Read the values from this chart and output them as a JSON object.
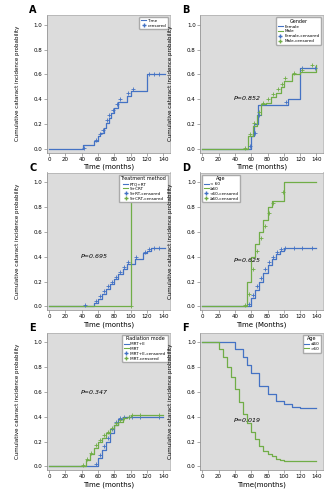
{
  "bg_color": "#dcdcdc",
  "blue_color": "#4472c4",
  "green_color": "#70ad47",
  "ylabel": "Cumulative cataract incidence probability",
  "xlabel_months": "Time (months)",
  "xlabel_Months": "Time (Months)",
  "xlabel_F": "Time(months)",
  "xticks": [
    0,
    20,
    40,
    60,
    80,
    100,
    120,
    140
  ],
  "yticks": [
    0.0,
    0.2,
    0.4,
    0.6,
    0.8,
    1.0
  ],
  "ylim": [
    -0.03,
    1.08
  ],
  "xlim": [
    -3,
    148
  ],
  "A_times": [
    0,
    40,
    42,
    55,
    60,
    63,
    67,
    70,
    73,
    76,
    80,
    85,
    95,
    100,
    120,
    125,
    130,
    142
  ],
  "A_vals": [
    0.0,
    0.0,
    0.03,
    0.06,
    0.1,
    0.13,
    0.17,
    0.21,
    0.25,
    0.29,
    0.33,
    0.38,
    0.43,
    0.47,
    0.6,
    0.6,
    0.6,
    0.6
  ],
  "A_censored_times": [
    43,
    58,
    62,
    66,
    71,
    74,
    78,
    83,
    87,
    97,
    103,
    122,
    128,
    135
  ],
  "A_censored_vals": [
    0.01,
    0.07,
    0.12,
    0.15,
    0.23,
    0.27,
    0.31,
    0.36,
    0.4,
    0.45,
    0.48,
    0.6,
    0.6,
    0.6
  ],
  "B_female_times": [
    0,
    55,
    60,
    63,
    68,
    100,
    105,
    120,
    140
  ],
  "B_female_vals": [
    0.0,
    0.0,
    0.1,
    0.2,
    0.35,
    0.35,
    0.4,
    0.65,
    0.65
  ],
  "B_male_times": [
    0,
    50,
    56,
    62,
    67,
    72,
    78,
    84,
    90,
    96,
    100,
    110,
    120,
    140
  ],
  "B_male_vals": [
    0.0,
    0.0,
    0.1,
    0.18,
    0.27,
    0.36,
    0.37,
    0.42,
    0.45,
    0.5,
    0.55,
    0.6,
    0.62,
    0.68
  ],
  "B_fcen_times": [
    58,
    65,
    70,
    103,
    122,
    138
  ],
  "B_fcen_vals": [
    0.02,
    0.13,
    0.27,
    0.38,
    0.65,
    0.65
  ],
  "B_mcen_times": [
    52,
    59,
    64,
    69,
    74,
    80,
    87,
    93,
    98,
    102,
    112,
    122,
    135
  ],
  "B_mcen_vals": [
    0.01,
    0.12,
    0.21,
    0.3,
    0.37,
    0.4,
    0.44,
    0.48,
    0.52,
    0.57,
    0.61,
    0.64,
    0.68
  ],
  "B_pval": "P=0.852",
  "C_ptqrt_times": [
    0,
    42,
    55,
    60,
    65,
    70,
    75,
    80,
    85,
    90,
    95,
    105,
    115,
    120,
    125,
    130,
    142
  ],
  "C_ptqrt_vals": [
    0.0,
    0.0,
    0.03,
    0.06,
    0.1,
    0.14,
    0.18,
    0.22,
    0.26,
    0.3,
    0.34,
    0.38,
    0.43,
    0.45,
    0.47,
    0.47,
    0.47
  ],
  "C_scrt_times": [
    0,
    98,
    100,
    140
  ],
  "C_scrt_vals": [
    0.0,
    0.0,
    1.0,
    1.0
  ],
  "C_ptqcen_times": [
    44,
    57,
    62,
    67,
    72,
    77,
    82,
    87,
    92,
    97,
    107,
    117,
    122,
    128,
    135
  ],
  "C_ptqcen_vals": [
    0.01,
    0.04,
    0.08,
    0.12,
    0.16,
    0.2,
    0.24,
    0.28,
    0.32,
    0.36,
    0.4,
    0.44,
    0.46,
    0.47,
    0.47
  ],
  "C_scrtcen_times": [
    100
  ],
  "C_scrtcen_vals": [
    0.0
  ],
  "C_pval": "P=0.695",
  "D_lt60_times": [
    0,
    55,
    60,
    65,
    70,
    75,
    80,
    85,
    90,
    95,
    100,
    110,
    120,
    140
  ],
  "D_lt60_vals": [
    0.0,
    0.0,
    0.07,
    0.13,
    0.2,
    0.27,
    0.33,
    0.38,
    0.42,
    0.45,
    0.47,
    0.47,
    0.47,
    0.47
  ],
  "D_ge60_times": [
    0,
    50,
    55,
    60,
    65,
    70,
    75,
    80,
    85,
    98,
    100,
    140
  ],
  "D_ge60_vals": [
    0.0,
    0.0,
    0.2,
    0.4,
    0.5,
    0.6,
    0.7,
    0.8,
    0.85,
    0.85,
    1.0,
    1.0
  ],
  "D_lt60cen_times": [
    57,
    62,
    67,
    72,
    77,
    82,
    87,
    92,
    97,
    102,
    112,
    122,
    135
  ],
  "D_lt60cen_vals": [
    0.02,
    0.09,
    0.16,
    0.23,
    0.3,
    0.36,
    0.4,
    0.44,
    0.46,
    0.47,
    0.47,
    0.47,
    0.47
  ],
  "D_ge60cen_times": [
    52,
    57,
    62,
    67,
    72,
    77,
    82,
    87,
    99
  ],
  "D_ge60cen_vals": [
    0.01,
    0.1,
    0.3,
    0.45,
    0.55,
    0.65,
    0.75,
    0.83,
    0.92
  ],
  "D_pval": "P=0.625",
  "E_imrte_times": [
    0,
    55,
    60,
    65,
    70,
    75,
    80,
    85,
    90,
    96,
    100,
    110,
    140
  ],
  "E_imrte_vals": [
    0.0,
    0.0,
    0.07,
    0.13,
    0.2,
    0.27,
    0.33,
    0.38,
    0.4,
    0.4,
    0.4,
    0.4,
    0.4
  ],
  "E_imrt_times": [
    0,
    40,
    45,
    50,
    55,
    60,
    65,
    70,
    75,
    80,
    85,
    90,
    96,
    100,
    110,
    140
  ],
  "E_imrt_vals": [
    0.0,
    0.0,
    0.05,
    0.1,
    0.15,
    0.2,
    0.23,
    0.27,
    0.3,
    0.33,
    0.36,
    0.39,
    0.4,
    0.41,
    0.41,
    0.41
  ],
  "E_imrtecen_times": [
    57,
    62,
    67,
    72,
    77,
    82,
    87,
    92,
    98,
    102,
    112,
    135
  ],
  "E_imrtecen_vals": [
    0.02,
    0.09,
    0.16,
    0.23,
    0.3,
    0.36,
    0.39,
    0.4,
    0.4,
    0.4,
    0.4,
    0.4
  ],
  "E_imrtcen_times": [
    42,
    47,
    52,
    57,
    62,
    67,
    72,
    77,
    82,
    87,
    92,
    98,
    102,
    112,
    135
  ],
  "E_imrtcen_vals": [
    0.01,
    0.06,
    0.11,
    0.17,
    0.21,
    0.25,
    0.28,
    0.31,
    0.35,
    0.37,
    0.39,
    0.4,
    0.41,
    0.41,
    0.41
  ],
  "E_pval": "P=0.347",
  "F_le60_times": [
    0,
    30,
    40,
    50,
    55,
    60,
    70,
    80,
    90,
    100,
    110,
    120,
    130,
    140
  ],
  "F_le60_vals": [
    1.0,
    1.0,
    0.95,
    0.88,
    0.82,
    0.75,
    0.65,
    0.58,
    0.53,
    0.5,
    0.48,
    0.47,
    0.47,
    0.47
  ],
  "F_gt60_times": [
    0,
    20,
    25,
    30,
    35,
    40,
    45,
    50,
    55,
    60,
    65,
    70,
    75,
    80,
    85,
    90,
    95,
    100,
    140
  ],
  "F_gt60_vals": [
    1.0,
    0.95,
    0.88,
    0.8,
    0.72,
    0.62,
    0.52,
    0.42,
    0.35,
    0.28,
    0.22,
    0.16,
    0.12,
    0.1,
    0.08,
    0.06,
    0.05,
    0.04,
    0.04
  ],
  "F_pval": "P=0.019",
  "F_xlabel": "Time(months)"
}
